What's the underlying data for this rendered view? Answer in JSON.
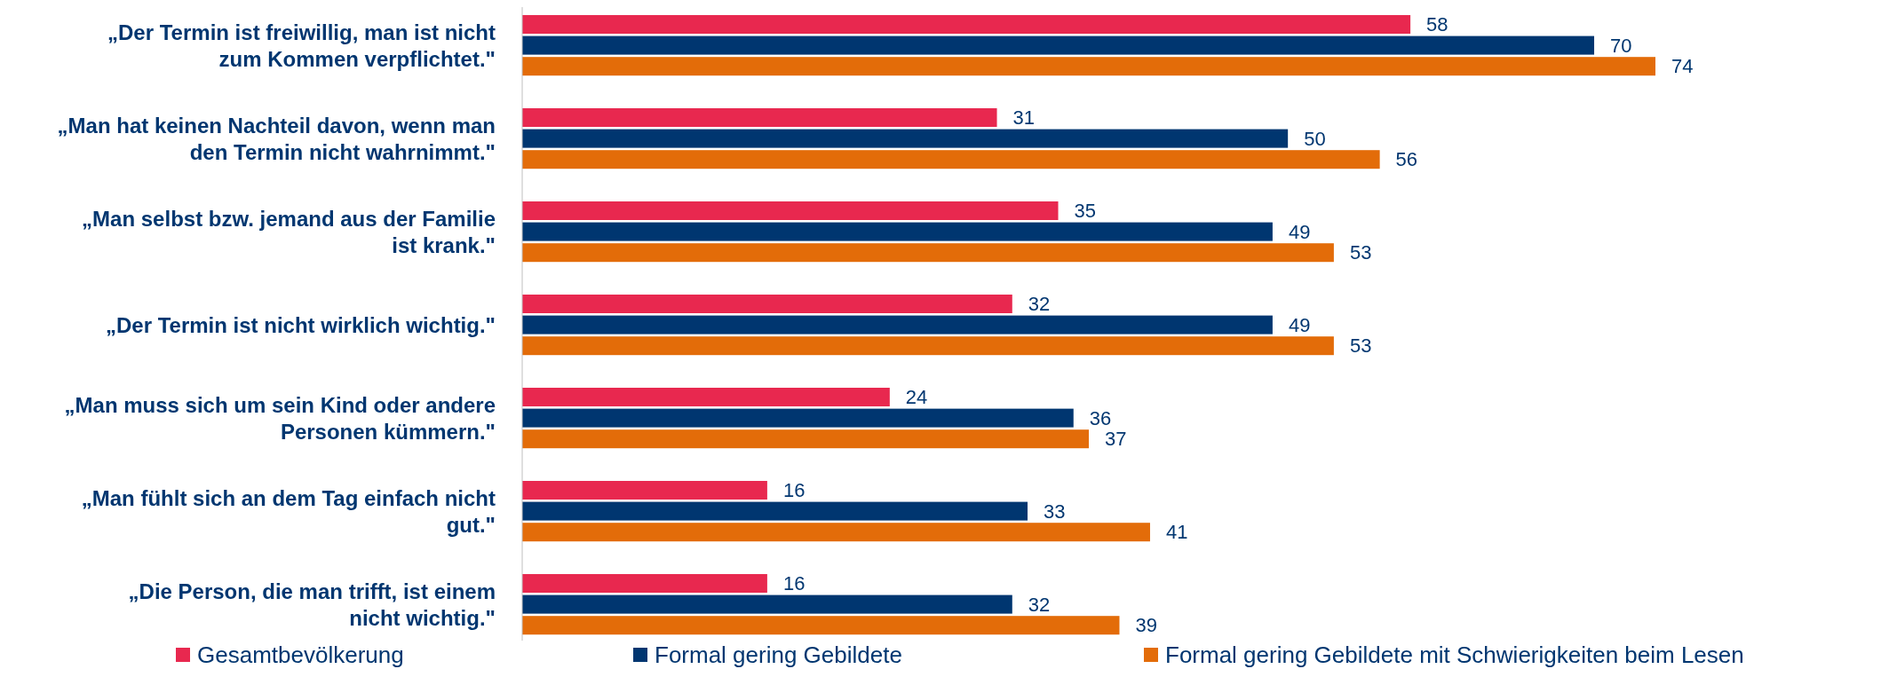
{
  "chart_data": {
    "type": "bar",
    "orientation": "horizontal",
    "data_labels": true,
    "legend": "bottom",
    "categories": [
      "„Der Termin ist freiwillig, man ist nicht zum Kommen verpflichtet.\"",
      "„Man hat keinen Nachteil davon, wenn man den Termin nicht wahrnimmt.\"",
      "„Man selbst bzw. jemand aus der Familie ist krank.\"",
      "„Der Termin ist nicht wirklich wichtig.\"",
      "„Man muss sich um sein Kind oder andere Personen kümmern.\"",
      "„Man fühlt sich an dem Tag einfach nicht gut.\"",
      "„Die Person, die man trifft, ist einem nicht wichtig.\""
    ],
    "series": [
      {
        "name": "Gesamtbevölkerung",
        "color": "#e8284f",
        "values": [
          58,
          31,
          35,
          32,
          24,
          16,
          16
        ]
      },
      {
        "name": "Formal gering Gebildete",
        "color": "#003670",
        "values": [
          70,
          50,
          49,
          49,
          36,
          33,
          32
        ]
      },
      {
        "name": "Formal gering Gebildete mit Schwierigkeiten beim Lesen",
        "color": "#e36c09",
        "values": [
          74,
          56,
          53,
          53,
          37,
          41,
          39
        ]
      }
    ]
  }
}
